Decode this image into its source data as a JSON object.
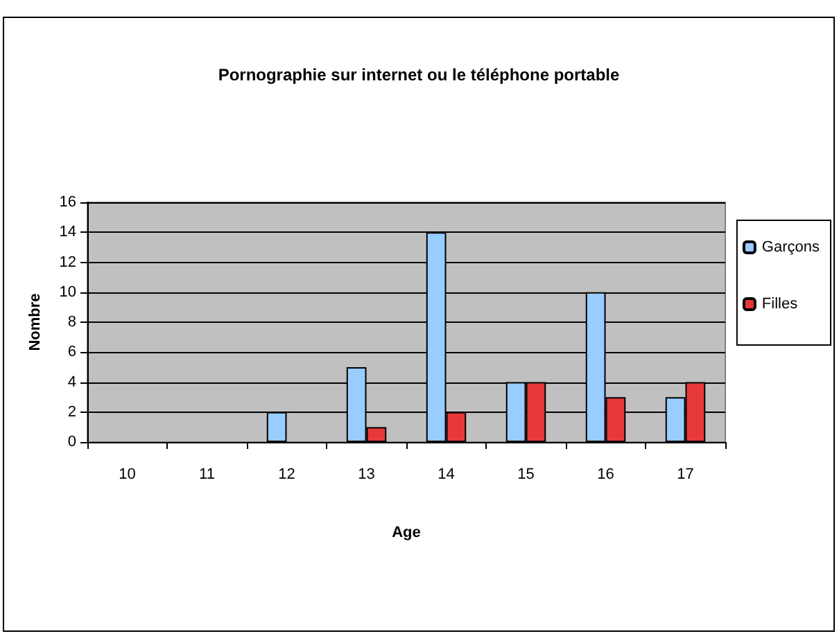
{
  "chart_data": {
    "type": "bar",
    "title": "Pornographie sur internet ou le téléphone portable",
    "xlabel": "Age",
    "ylabel": "Nombre",
    "categories": [
      "10",
      "11",
      "12",
      "13",
      "14",
      "15",
      "16",
      "17"
    ],
    "series": [
      {
        "name": "Garçons",
        "color": "#99ccff",
        "values": [
          0,
          0,
          2,
          5,
          14,
          4,
          10,
          3
        ]
      },
      {
        "name": "Filles",
        "color": "#e8393a",
        "values": [
          0,
          0,
          0,
          1,
          2,
          4,
          3,
          4
        ]
      }
    ],
    "ylim": [
      0,
      16
    ],
    "yticks": [
      0,
      2,
      4,
      6,
      8,
      10,
      12,
      14,
      16
    ],
    "grid": "y",
    "legend": "right"
  }
}
